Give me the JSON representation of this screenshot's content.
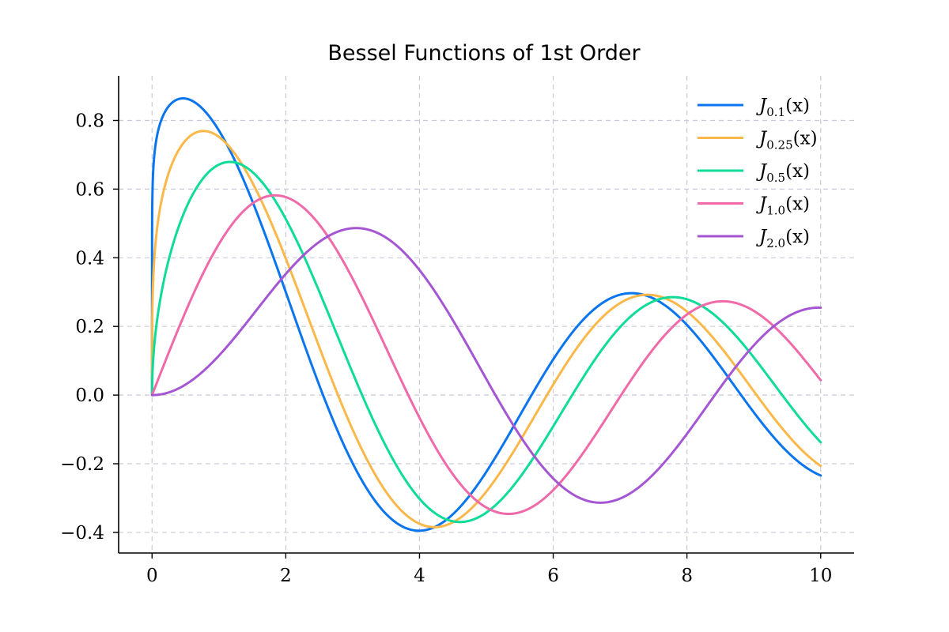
{
  "chart_data": {
    "type": "line",
    "title": "Bessel Functions of 1st Order",
    "xlabel": "",
    "ylabel": "",
    "xlim": [
      -0.5,
      10.5
    ],
    "ylim": [
      -0.46,
      0.93
    ],
    "xticks": [
      0,
      2,
      4,
      6,
      8,
      10
    ],
    "xtick_labels": [
      "0",
      "2",
      "4",
      "6",
      "8",
      "10"
    ],
    "yticks": [
      -0.4,
      -0.2,
      0.0,
      0.2,
      0.4,
      0.6,
      0.8
    ],
    "ytick_labels": [
      "−0.4",
      "−0.2",
      "0.0",
      "0.2",
      "0.4",
      "0.6",
      "0.8"
    ],
    "grid": true,
    "legend_position": "top-right",
    "series": [
      {
        "name": "J_{0.1}(x)",
        "label_main": "J",
        "label_sub": "0.1",
        "label_tail": "(x)",
        "order": 0.1,
        "color": "#0a75ee"
      },
      {
        "name": "J_{0.25}(x)",
        "label_main": "J",
        "label_sub": "0.25",
        "label_tail": "(x)",
        "order": 0.25,
        "color": "#fbb84a"
      },
      {
        "name": "J_{0.5}(x)",
        "label_main": "J",
        "label_sub": "0.5",
        "label_tail": "(x)",
        "order": 0.5,
        "color": "#0fdc98"
      },
      {
        "name": "J_{1.0}(x)",
        "label_main": "J",
        "label_sub": "1.0",
        "label_tail": "(x)",
        "order": 1.0,
        "color": "#f06aa9"
      },
      {
        "name": "J_{2.0}(x)",
        "label_main": "J",
        "label_sub": "2.0",
        "label_tail": "(x)",
        "order": 2.0,
        "color": "#a556d3"
      }
    ],
    "x_range": [
      0,
      10
    ]
  }
}
